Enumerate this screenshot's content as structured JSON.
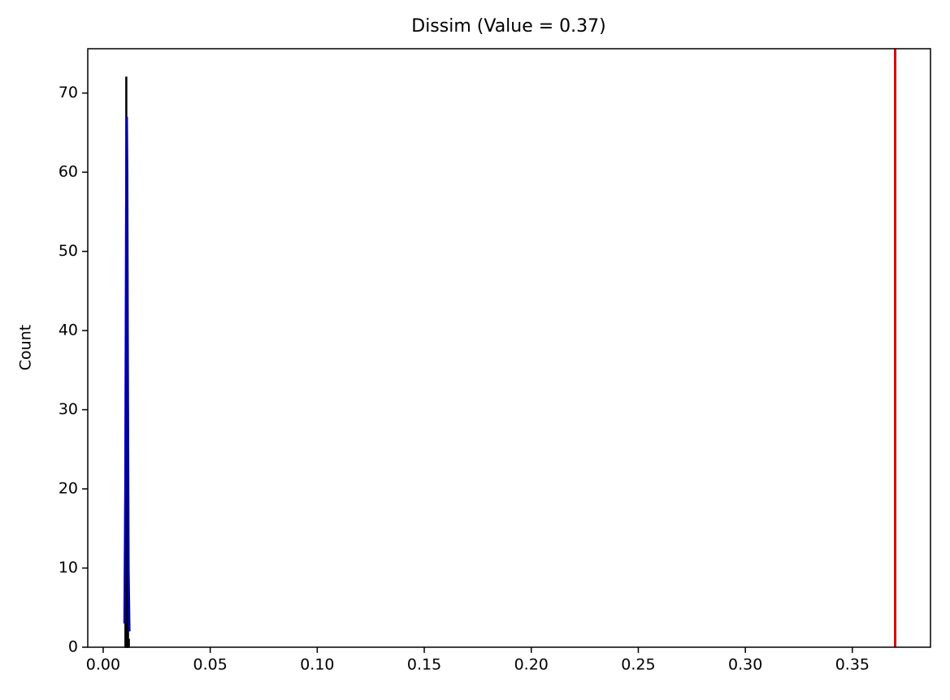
{
  "chart_data": {
    "type": "histogram",
    "title": "Dissim (Value = 0.37)",
    "ylabel": "Count",
    "bins": [
      0.0102,
      0.0106,
      0.011,
      0.0114,
      0.0118,
      0.0122
    ],
    "counts": [
      3,
      72,
      46,
      6,
      1
    ],
    "color": "#2a3fbf",
    "edgecolor": "#000000",
    "kde": {
      "x": [
        0.01,
        0.0104,
        0.0108,
        0.011,
        0.0112,
        0.0114,
        0.0118,
        0.0122
      ],
      "y": [
        3,
        20,
        55,
        67,
        60,
        40,
        10,
        2
      ],
      "color": "#0000aa"
    },
    "vline": {
      "x": 0.37,
      "color": "#e00000"
    },
    "xlim": [
      -0.0072,
      0.3865
    ],
    "ylim": [
      0,
      75.6
    ],
    "xticks": [
      {
        "value": 0,
        "label": "0.00"
      },
      {
        "value": 0.05,
        "label": "0.05"
      },
      {
        "value": 0.1,
        "label": "0.10"
      },
      {
        "value": 0.15,
        "label": "0.15"
      },
      {
        "value": 0.2,
        "label": "0.20"
      },
      {
        "value": 0.25,
        "label": "0.25"
      },
      {
        "value": 0.3,
        "label": "0.30"
      },
      {
        "value": 0.35,
        "label": "0.35"
      }
    ],
    "yticks": [
      0,
      10,
      20,
      30,
      40,
      50,
      60,
      70
    ],
    "grid": false
  }
}
